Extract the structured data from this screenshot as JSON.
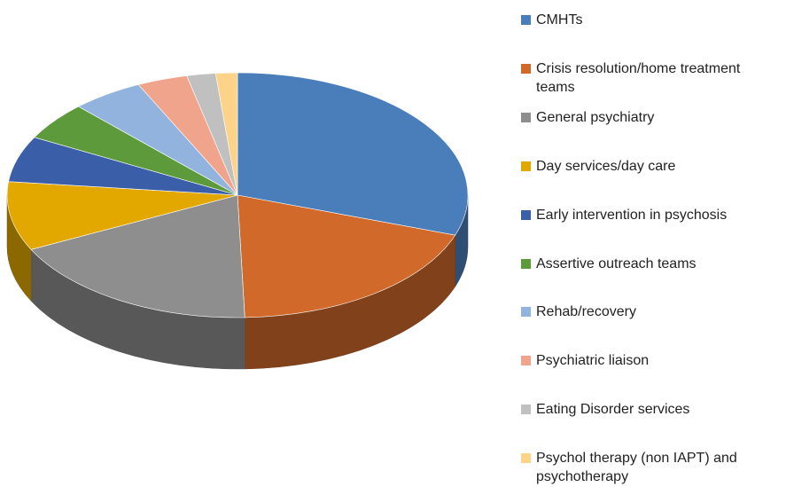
{
  "chart_data": {
    "type": "pie3d",
    "categories": [
      "CMHTs",
      "Crisis resolution/home treatment teams",
      "General psychiatry",
      "Day services/day care",
      "Early intervention in psychosis",
      "Assertive outreach teams",
      "Rehab/recovery",
      "Psychiatric liaison",
      "Eating Disorder services",
      "Psychol therapy (non IAPT) and psychotherapy"
    ],
    "values": [
      30,
      19,
      18,
      9,
      6,
      5,
      5,
      3.5,
      2,
      1.5
    ],
    "colors": [
      "#4a7ebb",
      "#d0692a",
      "#8e8e8e",
      "#e2a800",
      "#3b5ea8",
      "#5c9a3c",
      "#93b3df",
      "#f0a48c",
      "#c0c0c0",
      "#fdd38a"
    ],
    "legend": "right"
  }
}
